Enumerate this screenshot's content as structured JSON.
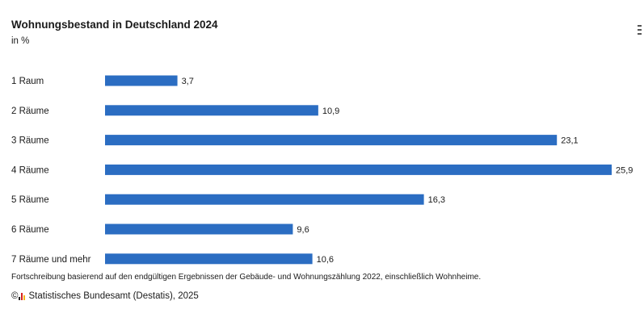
{
  "header": {
    "title": "Wohnungsbestand in Deutschland 2024",
    "unit": "in %"
  },
  "colors": {
    "bar": "#2b6dc2",
    "logo_red": "#d6201f",
    "logo_yellow": "#f2b417",
    "logo_black": "#222222"
  },
  "chart_data": {
    "type": "bar",
    "orientation": "horizontal",
    "title": "Wohnungsbestand in Deutschland 2024",
    "subtitle": "in %",
    "categories": [
      "1 Raum",
      "2 Räume",
      "3 Räume",
      "4 Räume",
      "5 Räume",
      "6 Räume",
      "7 Räume und mehr"
    ],
    "values": [
      3.7,
      10.9,
      23.1,
      25.9,
      16.3,
      9.6,
      10.6
    ],
    "value_labels": [
      "3,7",
      "10,9",
      "23,1",
      "25,9",
      "16,3",
      "9,6",
      "10,6"
    ],
    "xlim": [
      0,
      25.9
    ],
    "grid": false,
    "legend": "none"
  },
  "footer": {
    "note": "Fortschreibung basierend auf den endgültigen Ergebnissen der Gebäude- und Wohnungszählung 2022, einschließlich Wohnheime.",
    "copyright_symbol": "©",
    "source": "Statistisches Bundesamt (Destatis), 2025"
  },
  "icons": {
    "menu": "hamburger-menu-icon",
    "logo": "destatis-logo-icon"
  }
}
